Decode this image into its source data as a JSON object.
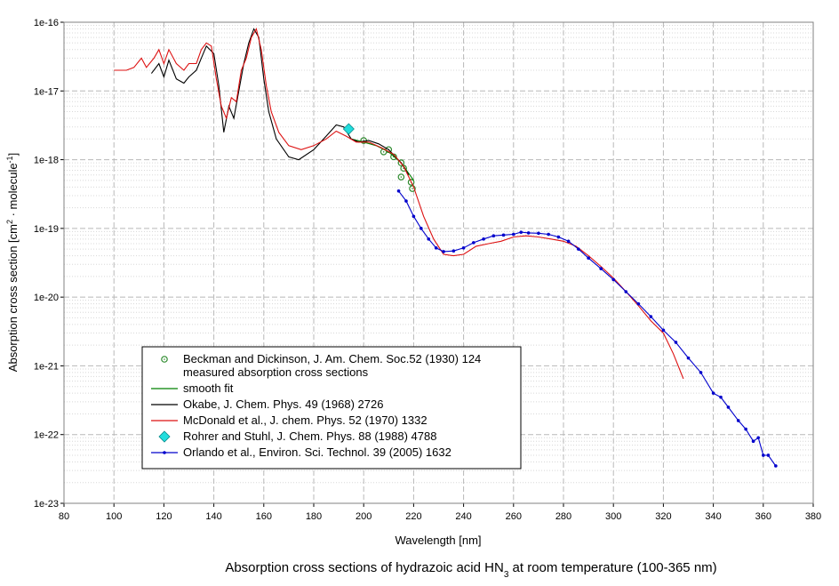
{
  "chart_data": {
    "type": "line",
    "title": [
      "Absorption cross sections of hydrazoic acid HN",
      "3",
      " at room temperature (100-365 nm)"
    ],
    "xlabel": "Wavelength [nm]",
    "ylabel": [
      "Absorption cross section [cm",
      "2",
      " · molecule",
      "-1",
      "]"
    ],
    "xlim": [
      80,
      380
    ],
    "xticks": [
      80,
      100,
      120,
      140,
      160,
      180,
      200,
      220,
      240,
      260,
      280,
      300,
      320,
      340,
      360,
      380
    ],
    "ylim": [
      1e-23,
      1e-16
    ],
    "yticks": [
      1e-23,
      1e-22,
      1e-21,
      1e-20,
      1e-19,
      1e-18,
      1e-17,
      1e-16
    ],
    "log_y": true,
    "grid": true,
    "legend": "lower left",
    "series": [
      {
        "name": [
          "Beckman and Dickinson, J. Am. Chem. Soc.52 (1930) 124",
          "measured absorption cross sections"
        ],
        "color": "#2e8b2e",
        "marker": "circle",
        "line": false,
        "x": [
          200,
          208,
          210,
          212,
          215,
          216,
          215,
          219,
          219.5
        ],
        "values": [
          1.9e-18,
          1.3e-18,
          1.4e-18,
          1.1e-18,
          9e-19,
          7.5e-19,
          5.6e-19,
          4.7e-19,
          3.8e-19
        ]
      },
      {
        "name": "smooth fit",
        "color": "#008000",
        "marker": "none",
        "line": true,
        "x": [
          195,
          200,
          205,
          210,
          215,
          220
        ],
        "values": [
          2e-18,
          1.8e-18,
          1.6e-18,
          1.3e-18,
          9e-19,
          5e-19
        ]
      },
      {
        "name": "Okabe, J. Chem. Phys. 49 (1968) 2726",
        "color": "#000000",
        "marker": "none",
        "line": true,
        "x": [
          115,
          118,
          120,
          122,
          125,
          128,
          130,
          133,
          135,
          137,
          140,
          142,
          144,
          146,
          148,
          150,
          152,
          154,
          156,
          158,
          160,
          162,
          165,
          170,
          174,
          180,
          185,
          189,
          192,
          195,
          198,
          202,
          206,
          210,
          215,
          218
        ],
        "values": [
          1.8e-17,
          2.5e-17,
          1.6e-17,
          2.8e-17,
          1.5e-17,
          1.3e-17,
          1.6e-17,
          2e-17,
          3e-17,
          4.5e-17,
          3.5e-17,
          1.2e-17,
          2.5e-18,
          6e-18,
          4e-18,
          1e-17,
          2.5e-17,
          5e-17,
          8e-17,
          6e-17,
          1.5e-17,
          5e-18,
          2e-18,
          1.1e-18,
          1e-18,
          1.4e-18,
          2.2e-18,
          3.2e-18,
          3e-18,
          2e-18,
          1.8e-18,
          1.9e-18,
          1.7e-18,
          1.4e-18,
          9e-19,
          6e-19
        ]
      },
      {
        "name": "McDonald et al., J. chem. Phys. 52 (1970) 1332",
        "color": "#dd1111",
        "marker": "none",
        "line": true,
        "x": [
          100,
          105,
          108,
          111,
          113,
          116,
          118,
          120,
          122,
          125,
          128,
          130,
          133,
          135,
          137,
          139,
          141,
          143,
          145,
          147,
          149,
          151,
          153,
          155,
          157,
          159,
          161,
          163,
          166,
          170,
          175,
          180,
          185,
          189,
          193,
          197,
          202,
          207,
          212,
          216,
          220,
          224,
          228,
          232,
          236,
          240,
          245,
          250,
          255,
          260,
          265,
          270,
          275,
          280,
          285,
          290,
          295,
          300,
          305,
          310,
          315,
          320,
          324,
          328
        ],
        "values": [
          2e-17,
          2e-17,
          2.2e-17,
          3e-17,
          2.2e-17,
          3e-17,
          4e-17,
          2.5e-17,
          4e-17,
          2.5e-17,
          2e-17,
          2.5e-17,
          2.5e-17,
          4e-17,
          5e-17,
          4.5e-17,
          1.5e-17,
          6e-18,
          4e-18,
          8e-18,
          7e-18,
          2e-17,
          3e-17,
          6e-17,
          8e-17,
          4e-17,
          1.2e-17,
          5e-18,
          2.5e-18,
          1.6e-18,
          1.4e-18,
          1.6e-18,
          2e-18,
          2.6e-18,
          2.2e-18,
          1.8e-18,
          1.8e-18,
          1.5e-18,
          1.2e-18,
          8e-19,
          4e-19,
          1.5e-19,
          7e-20,
          4.2e-20,
          4e-20,
          4.2e-20,
          5.5e-20,
          6e-20,
          6.5e-20,
          7.5e-20,
          7.8e-20,
          7.5e-20,
          7e-20,
          6.5e-20,
          5.5e-20,
          4e-20,
          2.8e-20,
          1.9e-20,
          1.2e-20,
          7.5e-21,
          4.5e-21,
          3e-21,
          1.5e-21,
          6.5e-22
        ]
      },
      {
        "name": "Rohrer and Stuhl, J. Chem. Phys. 88 (1988) 4788",
        "color": "#22dddd",
        "marker": "diamond",
        "line": false,
        "x": [
          194
        ],
        "values": [
          2.8e-18
        ]
      },
      {
        "name": "Orlando et al., Environ. Sci. Technol. 39 (2005) 1632",
        "color": "#0000cc",
        "marker": "dot",
        "line": true,
        "x": [
          214,
          217,
          220,
          223,
          226,
          229,
          232,
          236,
          240,
          244,
          248,
          252,
          256,
          260,
          263,
          266,
          270,
          274,
          278,
          282,
          286,
          290,
          295,
          300,
          305,
          310,
          315,
          320,
          325,
          330,
          335,
          340,
          343,
          346,
          350,
          353,
          356,
          358,
          360,
          362,
          365
        ],
        "values": [
          3.5e-19,
          2.5e-19,
          1.5e-19,
          1e-19,
          7e-20,
          5.2e-20,
          4.6e-20,
          4.7e-20,
          5.2e-20,
          6.2e-20,
          7e-20,
          7.8e-20,
          8e-20,
          8.2e-20,
          8.8e-20,
          8.6e-20,
          8.5e-20,
          8.2e-20,
          7.5e-20,
          6.5e-20,
          5e-20,
          3.7e-20,
          2.6e-20,
          1.8e-20,
          1.2e-20,
          8e-21,
          5.2e-21,
          3.3e-21,
          2.2e-21,
          1.3e-21,
          8e-22,
          4e-22,
          3.5e-22,
          2.5e-22,
          1.6e-22,
          1.2e-22,
          8e-23,
          9e-23,
          5e-23,
          5e-23,
          3.5e-23
        ]
      }
    ]
  }
}
